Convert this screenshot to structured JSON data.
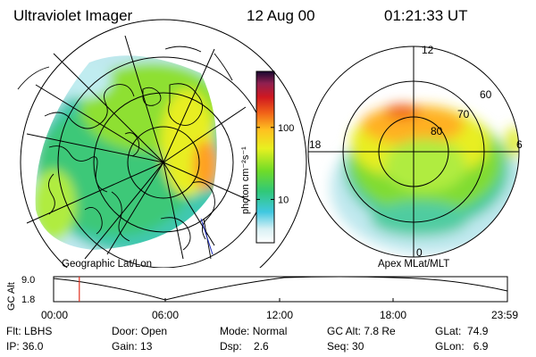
{
  "header": {
    "instrument": "Ultraviolet Imager",
    "date": "12 Aug 00",
    "time": "01:21:33 UT"
  },
  "left_panel": {
    "caption": "Geographic Lat/Lon"
  },
  "right_panel": {
    "caption": "Apex MLat/MLT",
    "mlt_labels": [
      "12",
      "6",
      "0",
      "18"
    ],
    "mlat_labels": [
      "60",
      "70",
      "80"
    ]
  },
  "colorbar": {
    "unit_label": "photon cm⁻²s⁻¹",
    "scale": "log",
    "tick_labels": [
      "100",
      "10"
    ],
    "tick_values": [
      100,
      10
    ],
    "range": [
      2.5,
      600
    ]
  },
  "altitude_strip": {
    "ylabel": "GC Alt",
    "y_ticks": [
      "9.0",
      "1.8"
    ],
    "x_ticks": [
      "00:00",
      "06:00",
      "12:00",
      "18:00",
      "23:59"
    ],
    "marker_time_hours": 1.36,
    "marker_color": "#e03020"
  },
  "info": {
    "filter": {
      "label": "Flt:",
      "value": "LBHS"
    },
    "ip": {
      "label": "IP:",
      "value": "36.0"
    },
    "door": {
      "label": "Door:",
      "value": "Open"
    },
    "gain": {
      "label": "Gain:",
      "value": "13"
    },
    "mode": {
      "label": "Mode:",
      "value": "Normal"
    },
    "dsp": {
      "label": "Dsp:",
      "value": "2.6"
    },
    "gc_alt": {
      "label": "GC Alt:",
      "value": "7.8 Re"
    },
    "seq": {
      "label": "Seq:",
      "value": "30"
    },
    "glat": {
      "label": "GLat:",
      "value": "74.9"
    },
    "glon": {
      "label": "GLon:",
      "value": "6.9"
    }
  }
}
